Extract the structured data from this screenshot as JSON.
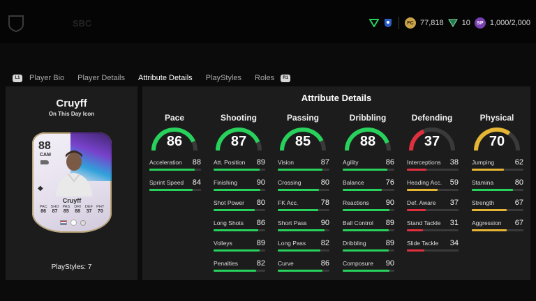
{
  "topbar": {
    "faded_items": [
      "SBC"
    ],
    "currencies": [
      {
        "icon": "coin-icon",
        "value": "77,818"
      },
      {
        "icon": "points-icon",
        "value": "10"
      },
      {
        "icon": "sp-icon",
        "value": "1,000/2,000"
      }
    ]
  },
  "tabs": {
    "left_bumper": "L1",
    "right_bumper": "R1",
    "items": [
      "Player Bio",
      "Player Details",
      "Attribute Details",
      "PlayStyles",
      "Roles"
    ],
    "active": "Attribute Details"
  },
  "player": {
    "name": "Cruyff",
    "subtitle": "On This Day Icon",
    "playstyles": "PlayStyles: 7",
    "card": {
      "rating": "88",
      "position": "CAM",
      "name": "Cruyff",
      "stats": [
        {
          "label": "PAC",
          "value": "86"
        },
        {
          "label": "SHO",
          "value": "87"
        },
        {
          "label": "PAS",
          "value": "85"
        },
        {
          "label": "DRI",
          "value": "88"
        },
        {
          "label": "DEF",
          "value": "37"
        },
        {
          "label": "PHY",
          "value": "70"
        }
      ]
    }
  },
  "attributes": {
    "title": "Attribute Details",
    "colors": {
      "high": "#27d15b",
      "mid": "#e5b534",
      "low": "#e0303f",
      "track": "#3a3a3a"
    },
    "columns": [
      {
        "name": "Pace",
        "value": 86,
        "tier": "high",
        "rows": [
          {
            "label": "Acceleration",
            "value": 88,
            "tier": "high"
          },
          {
            "label": "Sprint Speed",
            "value": 84,
            "tier": "high"
          }
        ]
      },
      {
        "name": "Shooting",
        "value": 87,
        "tier": "high",
        "rows": [
          {
            "label": "Att. Position",
            "value": 89,
            "tier": "high"
          },
          {
            "label": "Finishing",
            "value": 90,
            "tier": "high"
          },
          {
            "label": "Shot Power",
            "value": 80,
            "tier": "high"
          },
          {
            "label": "Long Shots",
            "value": 86,
            "tier": "high"
          },
          {
            "label": "Volleys",
            "value": 89,
            "tier": "high"
          },
          {
            "label": "Penalties",
            "value": 82,
            "tier": "high"
          }
        ]
      },
      {
        "name": "Passing",
        "value": 85,
        "tier": "high",
        "rows": [
          {
            "label": "Vision",
            "value": 87,
            "tier": "high"
          },
          {
            "label": "Crossing",
            "value": 80,
            "tier": "high"
          },
          {
            "label": "FK Acc.",
            "value": 78,
            "tier": "high"
          },
          {
            "label": "Short Pass",
            "value": 90,
            "tier": "high"
          },
          {
            "label": "Long Pass",
            "value": 82,
            "tier": "high"
          },
          {
            "label": "Curve",
            "value": 86,
            "tier": "high"
          }
        ]
      },
      {
        "name": "Dribbling",
        "value": 88,
        "tier": "high",
        "rows": [
          {
            "label": "Agility",
            "value": 86,
            "tier": "high"
          },
          {
            "label": "Balance",
            "value": 76,
            "tier": "high"
          },
          {
            "label": "Reactions",
            "value": 90,
            "tier": "high"
          },
          {
            "label": "Ball Control",
            "value": 89,
            "tier": "high"
          },
          {
            "label": "Dribbling",
            "value": 89,
            "tier": "high"
          },
          {
            "label": "Composure",
            "value": 90,
            "tier": "high"
          }
        ]
      },
      {
        "name": "Defending",
        "value": 37,
        "tier": "low",
        "rows": [
          {
            "label": "Interceptions",
            "value": 38,
            "tier": "low"
          },
          {
            "label": "Heading Acc.",
            "value": 59,
            "tier": "mid"
          },
          {
            "label": "Def. Aware",
            "value": 37,
            "tier": "low"
          },
          {
            "label": "Stand Tackle",
            "value": 31,
            "tier": "low"
          },
          {
            "label": "Slide Tackle",
            "value": 34,
            "tier": "low"
          }
        ]
      },
      {
        "name": "Physical",
        "value": 70,
        "tier": "mid",
        "rows": [
          {
            "label": "Jumping",
            "value": 62,
            "tier": "mid"
          },
          {
            "label": "Stamina",
            "value": 80,
            "tier": "high"
          },
          {
            "label": "Strength",
            "value": 67,
            "tier": "mid"
          },
          {
            "label": "Aggression",
            "value": 67,
            "tier": "mid"
          }
        ]
      }
    ]
  }
}
